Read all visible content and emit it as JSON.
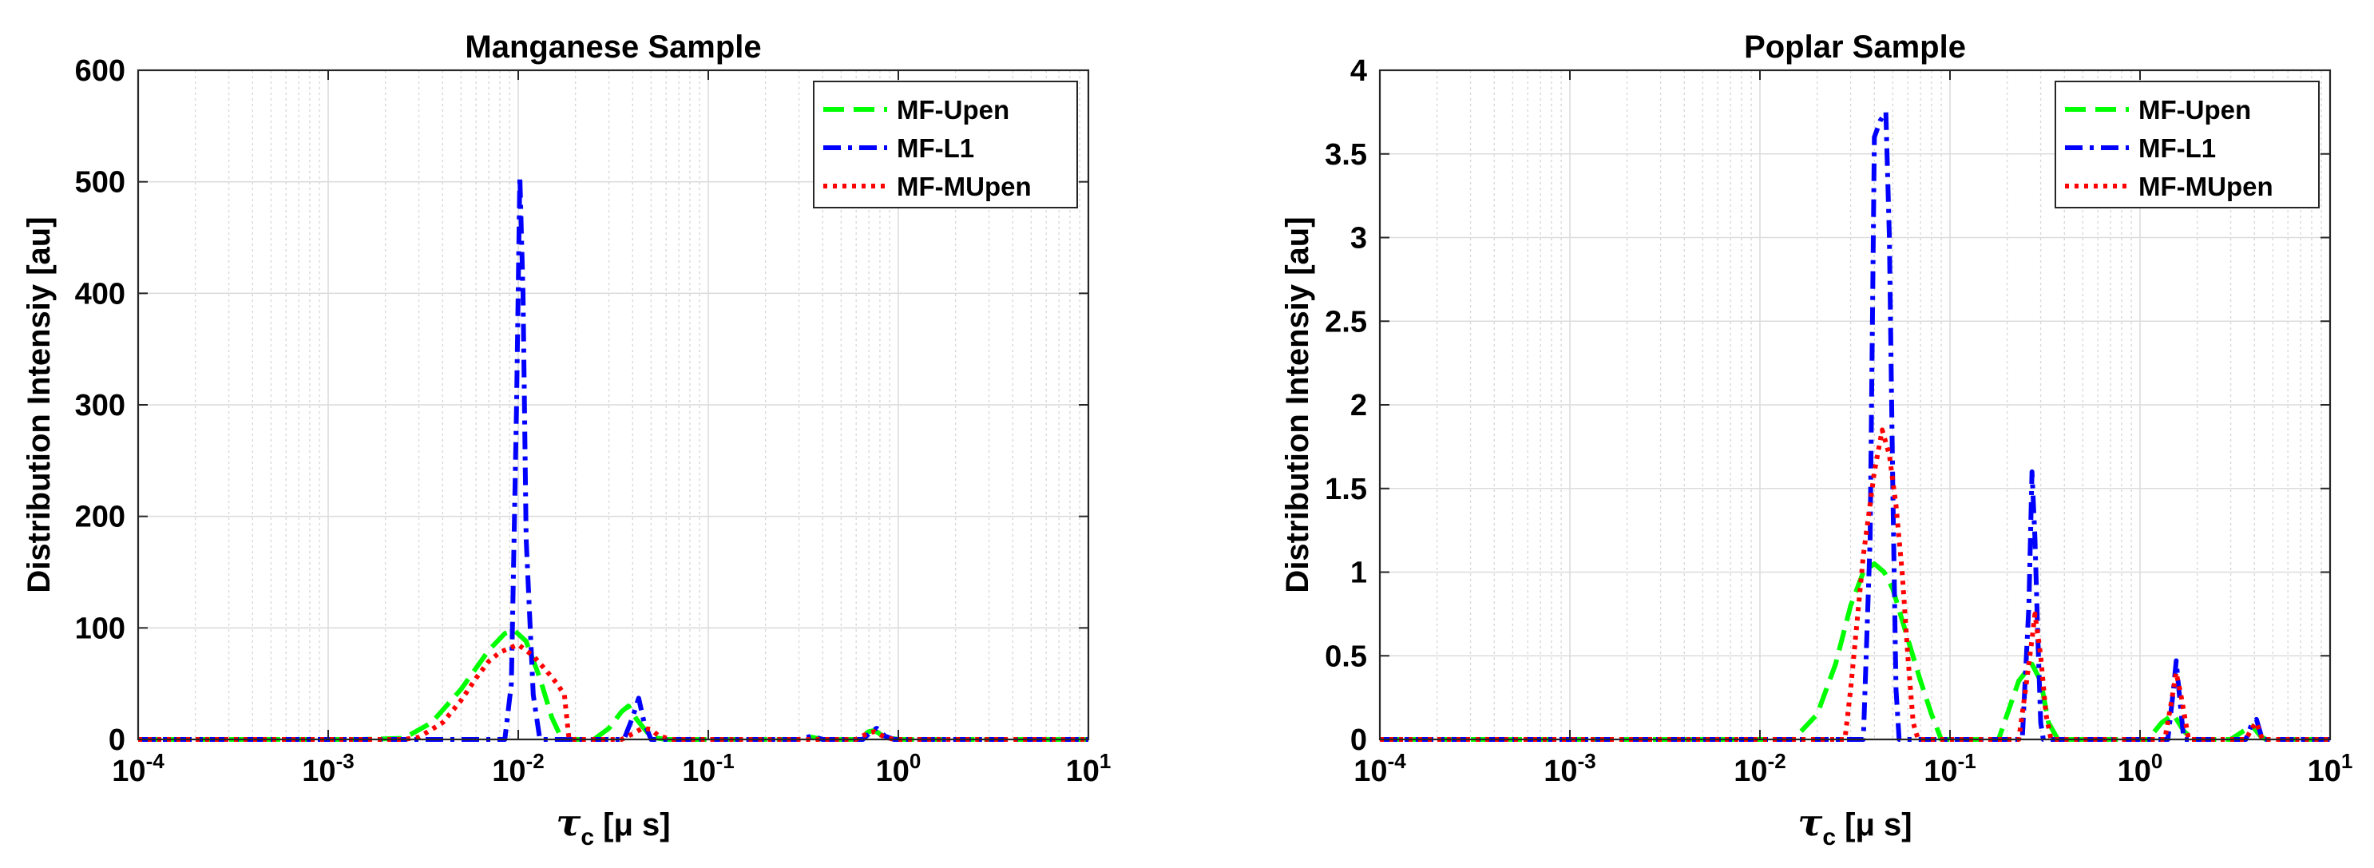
{
  "chart_data": [
    {
      "type": "line",
      "title": "Manganese Sample",
      "xlabel": "τ_c [μ s]",
      "xlabel_main": "τ",
      "xlabel_sub": "c",
      "xlabel_rest": " [μ s]",
      "ylabel": "Distribution Intensiy [au]",
      "xscale": "log",
      "xlim": [
        0.0001,
        10
      ],
      "ylim": [
        0,
        600
      ],
      "xticks": [
        {
          "value": 0.0001,
          "base": "10",
          "exp": "-4"
        },
        {
          "value": 0.001,
          "base": "10",
          "exp": "-3"
        },
        {
          "value": 0.01,
          "base": "10",
          "exp": "-2"
        },
        {
          "value": 0.1,
          "base": "10",
          "exp": "-1"
        },
        {
          "value": 1,
          "base": "10",
          "exp": "0"
        },
        {
          "value": 10,
          "base": "10",
          "exp": "1"
        }
      ],
      "yticks": [
        0,
        100,
        200,
        300,
        400,
        500,
        600
      ],
      "ytick_labels": [
        "0",
        "100",
        "200",
        "300",
        "400",
        "500",
        "600"
      ],
      "grid": true,
      "legend_position": "top-right",
      "series": [
        {
          "name": "MF-Upen",
          "color": "#00ff00",
          "style": "dashed",
          "points": [
            [
              0.0001,
              0
            ],
            [
              0.0015,
              0
            ],
            [
              0.0025,
              1
            ],
            [
              0.0035,
              15
            ],
            [
              0.005,
              45
            ],
            [
              0.007,
              80
            ],
            [
              0.0085,
              95
            ],
            [
              0.0095,
              98
            ],
            [
              0.011,
              88
            ],
            [
              0.013,
              55
            ],
            [
              0.015,
              20
            ],
            [
              0.017,
              0
            ],
            [
              0.025,
              0
            ],
            [
              0.03,
              10
            ],
            [
              0.035,
              25
            ],
            [
              0.038,
              30
            ],
            [
              0.042,
              18
            ],
            [
              0.05,
              2
            ],
            [
              0.06,
              0
            ],
            [
              0.3,
              0
            ],
            [
              0.35,
              2
            ],
            [
              0.4,
              0
            ],
            [
              0.6,
              0
            ],
            [
              0.7,
              7
            ],
            [
              0.75,
              8
            ],
            [
              0.85,
              2
            ],
            [
              1,
              0
            ],
            [
              10,
              0
            ]
          ]
        },
        {
          "name": "MF-L1",
          "color": "#0000ff",
          "style": "dashdot",
          "points": [
            [
              0.0001,
              0
            ],
            [
              0.0085,
              0
            ],
            [
              0.0092,
              50
            ],
            [
              0.0098,
              300
            ],
            [
              0.0102,
              505
            ],
            [
              0.0106,
              400
            ],
            [
              0.011,
              180
            ],
            [
              0.012,
              40
            ],
            [
              0.013,
              0
            ],
            [
              0.036,
              0
            ],
            [
              0.04,
              20
            ],
            [
              0.043,
              37
            ],
            [
              0.046,
              15
            ],
            [
              0.05,
              0
            ],
            [
              0.3,
              0
            ],
            [
              0.35,
              3
            ],
            [
              0.4,
              0
            ],
            [
              0.65,
              0
            ],
            [
              0.73,
              8
            ],
            [
              0.77,
              10
            ],
            [
              0.85,
              3
            ],
            [
              0.95,
              0
            ],
            [
              10,
              0
            ]
          ]
        },
        {
          "name": "MF-MUpen",
          "color": "#ff0000",
          "style": "dotted",
          "points": [
            [
              0.0001,
              0
            ],
            [
              0.0025,
              0
            ],
            [
              0.003,
              2
            ],
            [
              0.004,
              15
            ],
            [
              0.005,
              35
            ],
            [
              0.006,
              55
            ],
            [
              0.007,
              70
            ],
            [
              0.008,
              78
            ],
            [
              0.009,
              82
            ],
            [
              0.01,
              85
            ],
            [
              0.012,
              75
            ],
            [
              0.014,
              62
            ],
            [
              0.016,
              50
            ],
            [
              0.0175,
              40
            ],
            [
              0.0185,
              0
            ],
            [
              0.035,
              0
            ],
            [
              0.04,
              5
            ],
            [
              0.045,
              10
            ],
            [
              0.05,
              9
            ],
            [
              0.055,
              3
            ],
            [
              0.065,
              0
            ],
            [
              0.6,
              0
            ],
            [
              0.7,
              6
            ],
            [
              0.75,
              7
            ],
            [
              0.85,
              2
            ],
            [
              0.95,
              0
            ],
            [
              10,
              0
            ]
          ]
        }
      ]
    },
    {
      "type": "line",
      "title": "Poplar Sample",
      "xlabel": "τ_c [μ s]",
      "xlabel_main": "τ",
      "xlabel_sub": "c",
      "xlabel_rest": " [μ s]",
      "ylabel": "Distribution Intensiy [au]",
      "xscale": "log",
      "xlim": [
        0.0001,
        10
      ],
      "ylim": [
        0,
        4
      ],
      "xticks": [
        {
          "value": 0.0001,
          "base": "10",
          "exp": "-4"
        },
        {
          "value": 0.001,
          "base": "10",
          "exp": "-3"
        },
        {
          "value": 0.01,
          "base": "10",
          "exp": "-2"
        },
        {
          "value": 0.1,
          "base": "10",
          "exp": "-1"
        },
        {
          "value": 1,
          "base": "10",
          "exp": "0"
        },
        {
          "value": 10,
          "base": "10",
          "exp": "1"
        }
      ],
      "yticks": [
        0,
        0.5,
        1,
        1.5,
        2,
        2.5,
        3,
        3.5,
        4
      ],
      "ytick_labels": [
        "0",
        "0.5",
        "1",
        "1.5",
        "2",
        "2.5",
        "3",
        "3.5",
        "4"
      ],
      "grid": true,
      "legend_position": "top-right",
      "series": [
        {
          "name": "MF-Upen",
          "color": "#00ff00",
          "style": "dashed",
          "points": [
            [
              0.0001,
              0
            ],
            [
              0.015,
              0
            ],
            [
              0.02,
              0.15
            ],
            [
              0.025,
              0.45
            ],
            [
              0.03,
              0.8
            ],
            [
              0.035,
              1.0
            ],
            [
              0.04,
              1.05
            ],
            [
              0.045,
              1.0
            ],
            [
              0.05,
              0.9
            ],
            [
              0.06,
              0.6
            ],
            [
              0.07,
              0.35
            ],
            [
              0.08,
              0.15
            ],
            [
              0.09,
              0
            ],
            [
              0.18,
              0
            ],
            [
              0.2,
              0.15
            ],
            [
              0.23,
              0.35
            ],
            [
              0.27,
              0.45
            ],
            [
              0.3,
              0.35
            ],
            [
              0.33,
              0.1
            ],
            [
              0.37,
              0
            ],
            [
              1.1,
              0
            ],
            [
              1.3,
              0.1
            ],
            [
              1.5,
              0.15
            ],
            [
              1.7,
              0.05
            ],
            [
              1.9,
              0
            ],
            [
              3,
              0
            ],
            [
              3.5,
              0.05
            ],
            [
              3.9,
              0.08
            ],
            [
              4.3,
              0.02
            ],
            [
              4.6,
              0
            ],
            [
              10,
              0
            ]
          ]
        },
        {
          "name": "MF-L1",
          "color": "#0000ff",
          "style": "dashdot",
          "points": [
            [
              0.0001,
              0
            ],
            [
              0.035,
              0
            ],
            [
              0.038,
              1.2
            ],
            [
              0.04,
              3.6
            ],
            [
              0.043,
              3.7
            ],
            [
              0.046,
              3.75
            ],
            [
              0.048,
              3.0
            ],
            [
              0.05,
              1.5
            ],
            [
              0.052,
              0.3
            ],
            [
              0.054,
              0
            ],
            [
              0.24,
              0
            ],
            [
              0.26,
              0.8
            ],
            [
              0.27,
              1.6
            ],
            [
              0.28,
              1.2
            ],
            [
              0.29,
              0.6
            ],
            [
              0.3,
              0.1
            ],
            [
              0.31,
              0
            ],
            [
              1.4,
              0
            ],
            [
              1.5,
              0.3
            ],
            [
              1.55,
              0.47
            ],
            [
              1.6,
              0.3
            ],
            [
              1.7,
              0
            ],
            [
              3.6,
              0
            ],
            [
              3.9,
              0.1
            ],
            [
              4.1,
              0.12
            ],
            [
              4.4,
              0
            ],
            [
              10,
              0
            ]
          ]
        },
        {
          "name": "MF-MUpen",
          "color": "#ff0000",
          "style": "dotted",
          "points": [
            [
              0.0001,
              0
            ],
            [
              0.028,
              0
            ],
            [
              0.03,
              0.3
            ],
            [
              0.035,
              1.1
            ],
            [
              0.04,
              1.6
            ],
            [
              0.044,
              1.85
            ],
            [
              0.048,
              1.7
            ],
            [
              0.052,
              1.4
            ],
            [
              0.056,
              1.0
            ],
            [
              0.06,
              0.5
            ],
            [
              0.064,
              0.1
            ],
            [
              0.068,
              0
            ],
            [
              0.23,
              0
            ],
            [
              0.25,
              0.3
            ],
            [
              0.27,
              0.6
            ],
            [
              0.28,
              0.75
            ],
            [
              0.3,
              0.5
            ],
            [
              0.32,
              0.15
            ],
            [
              0.34,
              0
            ],
            [
              1.35,
              0
            ],
            [
              1.45,
              0.2
            ],
            [
              1.55,
              0.4
            ],
            [
              1.65,
              0.25
            ],
            [
              1.8,
              0
            ],
            [
              3.6,
              0
            ],
            [
              3.9,
              0.07
            ],
            [
              4.1,
              0.1
            ],
            [
              4.4,
              0
            ],
            [
              10,
              0
            ]
          ]
        }
      ]
    }
  ]
}
